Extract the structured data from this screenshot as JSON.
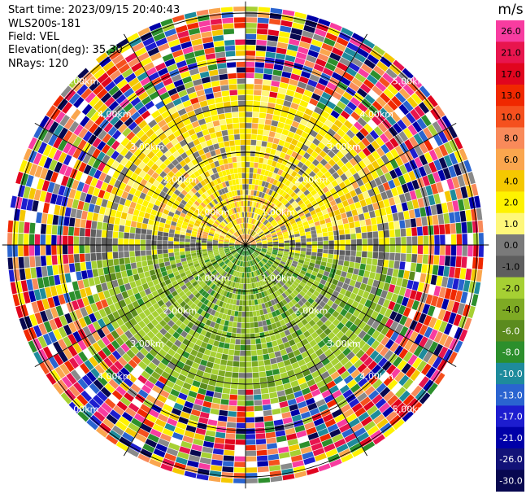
{
  "header": {
    "start_time": "Start time: 2023/09/15 20:40:43",
    "instrument": "WLS200s-181",
    "field": "Field: VEL",
    "elevation": "Elevation(deg): 35.30",
    "nrays": "NRays: 120"
  },
  "chart_data": {
    "type": "heatmap",
    "subtype": "radar-ppi-polar",
    "field": "VEL",
    "units": "m/s",
    "n_rays": 120,
    "elevation_deg": 35.3,
    "range_rings_km": [
      "1.00km",
      "2.00km",
      "3.00km",
      "4.00km",
      "5.00km"
    ],
    "ring_values_km": [
      1,
      2,
      3,
      4,
      5
    ],
    "max_range_km": 5.25,
    "colorbar": {
      "title": "m/s",
      "ticks": [
        "26.0",
        "21.0",
        "17.0",
        "13.0",
        "10.0",
        "8.0",
        "6.0",
        "4.0",
        "2.0",
        "1.0",
        "0.0",
        "-1.0",
        "-2.0",
        "-4.0",
        "-6.0",
        "-8.0",
        "-10.0",
        "-13.0",
        "-17.0",
        "-21.0",
        "-26.0",
        "-30.0"
      ],
      "colors": [
        "#f83ca0",
        "#e8154e",
        "#e1051f",
        "#f02800",
        "#f5501e",
        "#f98a5a",
        "#faa64e",
        "#f5c800",
        "#fef200",
        "#fef77a",
        "#7a7a7a",
        "#5e5e5e",
        "#a6d033",
        "#7eaa24",
        "#5b8b1e",
        "#2c8f2c",
        "#1e8b9c",
        "#2a64d0",
        "#1d1dcf",
        "#0000a8",
        "#121278",
        "#080850"
      ]
    },
    "pattern_summary": {
      "north_half": "positive velocity, mostly 1 to 4 m/s (yellow / orange)",
      "south_half": "negative velocity, mostly -1 to -4 m/s (green)",
      "beyond_about_3.3km": "noisy multicolored returns"
    }
  }
}
